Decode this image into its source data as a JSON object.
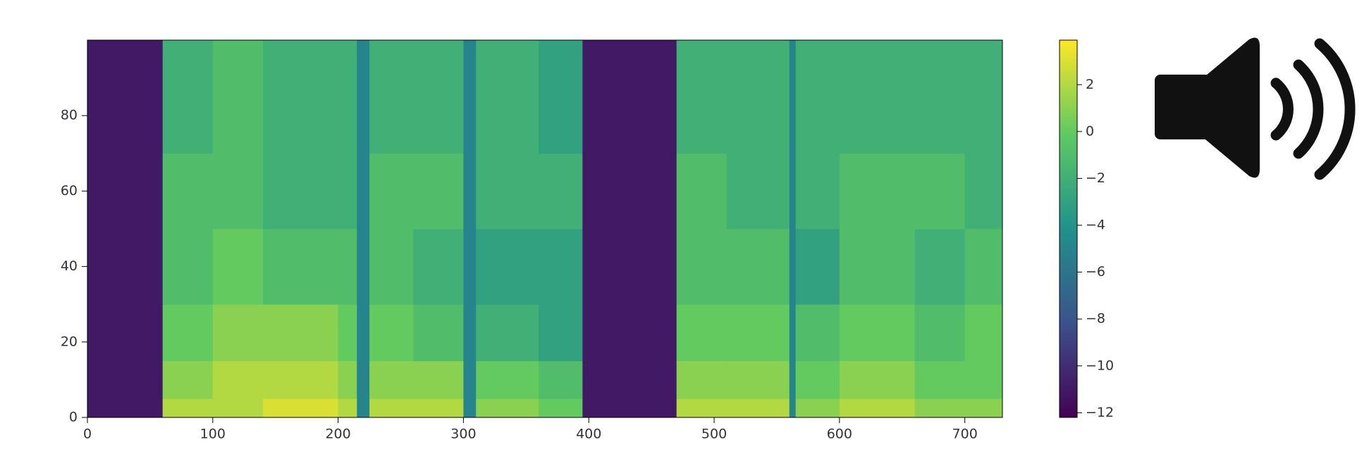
{
  "chart_data": {
    "type": "heatmap",
    "colormap": "viridis",
    "x_edges": [
      0,
      60,
      100,
      140,
      200,
      215,
      225,
      260,
      300,
      310,
      360,
      395,
      470,
      510,
      560,
      565,
      600,
      660,
      700,
      730
    ],
    "y_edges": [
      0,
      5,
      15,
      30,
      50,
      70,
      100
    ],
    "z": [
      [
        -11,
        2,
        2,
        3,
        2,
        -5,
        2,
        2,
        -5,
        1,
        0,
        -11,
        2,
        2,
        -5,
        1,
        2,
        1,
        1
      ],
      [
        -11,
        1,
        2,
        2,
        1,
        -5,
        1,
        1,
        -5,
        0,
        -1,
        -11,
        1,
        1,
        -5,
        0,
        1,
        0,
        0
      ],
      [
        -11,
        0,
        1,
        1,
        0,
        -5,
        0,
        -1,
        -5,
        -2,
        -3,
        -11,
        0,
        0,
        -5,
        -1,
        0,
        -1,
        0
      ],
      [
        -11,
        -1,
        0,
        -1,
        -1,
        -5,
        -1,
        -2,
        -5,
        -3,
        -3,
        -11,
        -1,
        -1,
        -5,
        -3,
        -1,
        -2,
        -1
      ],
      [
        -11,
        -1,
        -1,
        -2,
        -2,
        -5,
        -1,
        -1,
        -5,
        -2,
        -2,
        -11,
        -1,
        -2,
        -5,
        -2,
        -1,
        -1,
        -2
      ],
      [
        -11,
        -2,
        -1,
        -2,
        -2,
        -5,
        -2,
        -2,
        -5,
        -2,
        -3,
        -11,
        -2,
        -2,
        -5,
        -2,
        -2,
        -2,
        -2
      ]
    ],
    "xlim": [
      0,
      730
    ],
    "ylim": [
      0,
      100
    ],
    "xticks": [
      0,
      100,
      200,
      300,
      400,
      500,
      600,
      700
    ],
    "yticks": [
      0,
      20,
      40,
      60,
      80
    ],
    "clim": [
      -12.2,
      3.9
    ],
    "cticks": [
      {
        "value": -12,
        "label": "−12"
      },
      {
        "value": -10,
        "label": "−10"
      },
      {
        "value": -8,
        "label": "−8"
      },
      {
        "value": -6,
        "label": "−6"
      },
      {
        "value": -4,
        "label": "−4"
      },
      {
        "value": -2,
        "label": "−2"
      },
      0,
      2
    ]
  }
}
